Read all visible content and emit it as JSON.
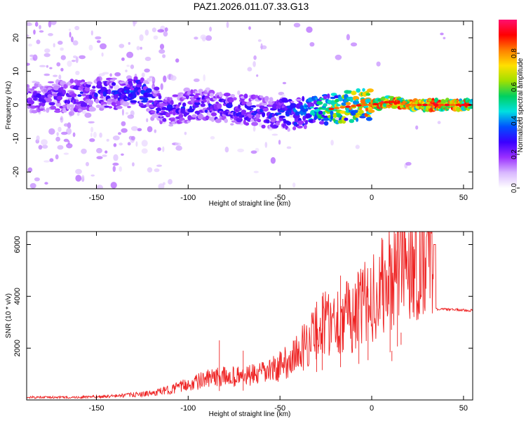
{
  "figure": {
    "title": "PAZ1.2026.011.07.33.G13"
  },
  "chart_data": [
    {
      "type": "heatmap",
      "name": "spectrogram",
      "xlabel": "Height of straight line (km)",
      "ylabel": "Frequency (Hz)",
      "xlim": [
        -188,
        55
      ],
      "ylim": [
        -25,
        25
      ],
      "xticks": [
        -150,
        -100,
        -50,
        0,
        50
      ],
      "yticks": [
        -20,
        -10,
        0,
        10,
        20
      ],
      "colorbar": {
        "label": "Normalized spectral amplitude",
        "range": [
          0,
          1
        ],
        "ticks": [
          "0.0",
          "0.2",
          "0.4",
          "0.6",
          "0.8"
        ],
        "colors": [
          "#ffffff",
          "#d9b8ff",
          "#9b30ff",
          "#3a00ff",
          "#0050ff",
          "#00e0e0",
          "#00d060",
          "#a0e000",
          "#ffe000",
          "#ff8000",
          "#ff0000",
          "#ff1070"
        ]
      },
      "dominant_ridge": {
        "x": [
          -185,
          -150,
          -125,
          -112,
          -95,
          -80,
          -60,
          -45,
          -30,
          -20,
          -5,
          0,
          10,
          20,
          35,
          55
        ],
        "freq_hz": [
          2,
          3,
          4,
          -2,
          0,
          -1,
          -2,
          -3,
          -2,
          -1,
          0,
          0,
          1,
          0,
          0,
          0
        ],
        "amplitude": [
          0.25,
          0.3,
          0.35,
          0.3,
          0.3,
          0.3,
          0.3,
          0.35,
          0.5,
          0.65,
          0.8,
          0.85,
          0.9,
          0.8,
          0.85,
          0.8
        ]
      }
    },
    {
      "type": "line",
      "name": "snr",
      "xlabel": "Height of straight line (km)",
      "ylabel": "SNR (10 * v/v)",
      "xlim": [
        -188,
        55
      ],
      "ylim": [
        0,
        6500
      ],
      "xticks": [
        -150,
        -100,
        -50,
        0,
        50
      ],
      "yticks": [
        2000,
        4000,
        6000
      ],
      "color": "#ee2222",
      "envelope": {
        "x": [
          -188,
          -160,
          -140,
          -120,
          -110,
          -100,
          -90,
          -80,
          -70,
          -60,
          -50,
          -40,
          -30,
          -25,
          -20,
          -15,
          -10,
          -5,
          0,
          5,
          10,
          15,
          20,
          25,
          30,
          34,
          35,
          40,
          55
        ],
        "y": [
          100,
          100,
          150,
          250,
          400,
          600,
          800,
          900,
          900,
          1000,
          1300,
          1800,
          2700,
          3000,
          3100,
          3200,
          3300,
          3600,
          4000,
          4300,
          4600,
          5300,
          5400,
          5600,
          5800,
          5900,
          3500,
          3500,
          3450
        ]
      },
      "spikes": [
        [
          -70,
          1900
        ],
        [
          -83,
          2300
        ],
        [
          -30,
          3300
        ],
        [
          -27,
          4000
        ],
        [
          -17,
          4800
        ],
        [
          -7,
          3800
        ],
        [
          -2,
          4300
        ],
        [
          10,
          6000
        ],
        [
          11,
          1500
        ],
        [
          14,
          6500
        ],
        [
          16,
          2600
        ]
      ]
    }
  ]
}
